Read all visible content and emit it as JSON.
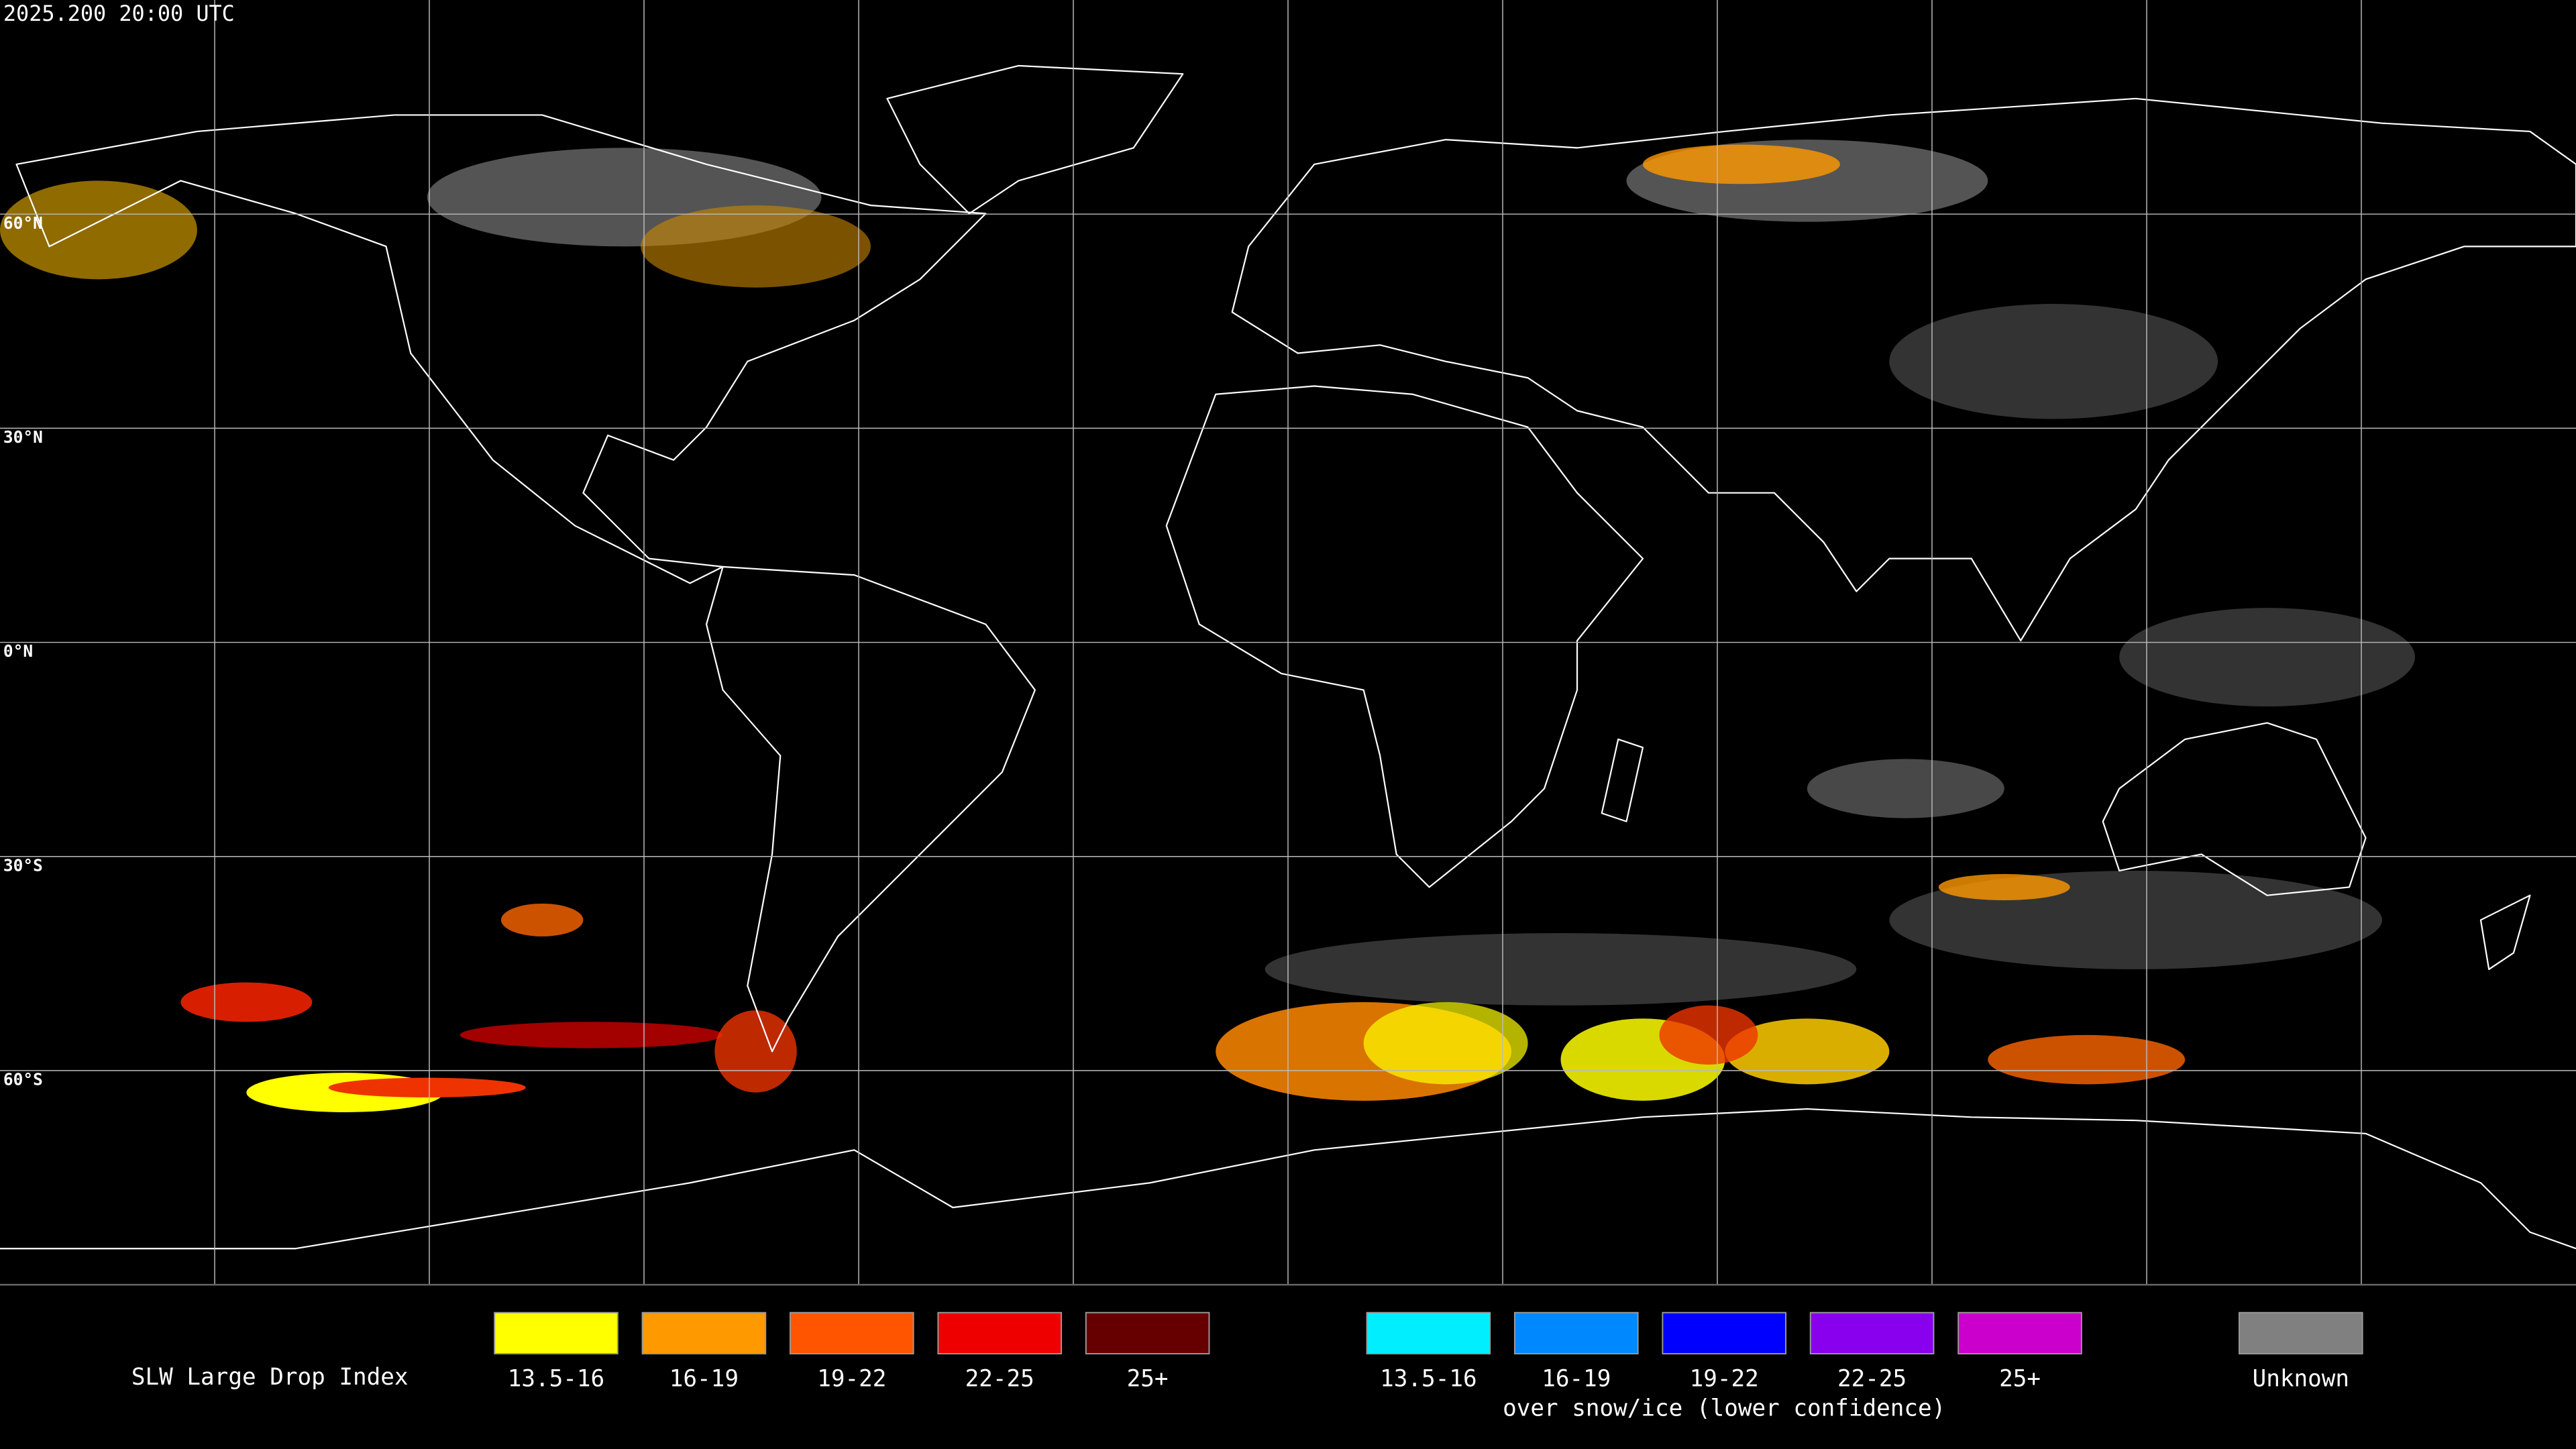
{
  "header": {
    "timestamp": "2025.200 20:00 UTC"
  },
  "map": {
    "latitude_labels": [
      "60°N",
      "30°N",
      "0°N",
      "30°S",
      "60°S"
    ]
  },
  "legend": {
    "title": "SLW Large Drop Index",
    "groups": [
      {
        "items": [
          {
            "label": "13.5-16",
            "color": "#ffff00"
          },
          {
            "label": "16-19",
            "color": "#ff9900"
          },
          {
            "label": "19-22",
            "color": "#ff5500"
          },
          {
            "label": "22-25",
            "color": "#ee0000"
          },
          {
            "label": "25+",
            "color": "#660000"
          }
        ]
      },
      {
        "caption": "over snow/ice (lower confidence)",
        "items": [
          {
            "label": "13.5-16",
            "color": "#00eeff"
          },
          {
            "label": "16-19",
            "color": "#0088ff"
          },
          {
            "label": "19-22",
            "color": "#0000ff"
          },
          {
            "label": "22-25",
            "color": "#8800ee"
          },
          {
            "label": "25+",
            "color": "#cc00cc"
          }
        ]
      },
      {
        "items": [
          {
            "label": "Unknown",
            "color": "#808080"
          }
        ]
      }
    ]
  }
}
